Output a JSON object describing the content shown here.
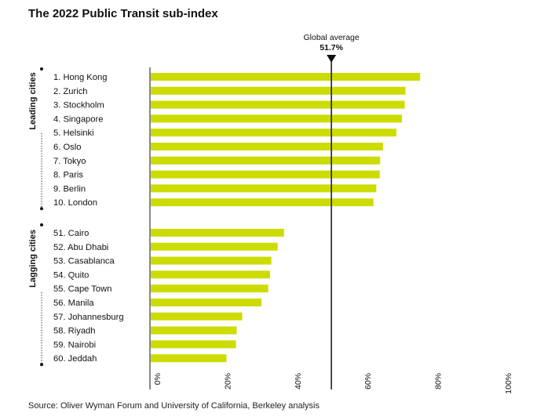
{
  "chart_data": {
    "type": "bar",
    "orientation": "horizontal",
    "title": "The 2022 Public Transit sub-index",
    "source": "Source: Oliver Wyman Forum and University of California, Berkeley analysis",
    "bar_color": "#cddc00",
    "xlim": [
      0,
      100
    ],
    "x_ticks": [
      "0%",
      "20%",
      "40%",
      "60%",
      "80%",
      "100%"
    ],
    "reference_line": {
      "label": "Global average",
      "value_label": "51.7%",
      "value": 51.7
    },
    "groups": [
      {
        "name": "Leading cities",
        "categories": [
          "1. Hong Kong",
          "2. Zurich",
          "3. Stockholm",
          "4. Singapore",
          "5. Helsinki",
          "6. Oslo",
          "7. Tokyo",
          "8. Paris",
          "9. Berlin",
          "10. London"
        ],
        "values": [
          77.0,
          72.8,
          72.6,
          71.8,
          70.2,
          66.4,
          65.6,
          65.5,
          64.5,
          63.7
        ]
      },
      {
        "name": "Lagging cities",
        "categories": [
          "51. Cairo",
          "52. Abu Dhabi",
          "53. Casablanca",
          "54. Quito",
          "55. Cape Town",
          "56. Manila",
          "57. Johannesburg",
          "58. Riyadh",
          "59. Nairobi",
          "60. Jeddah"
        ],
        "values": [
          38.2,
          36.4,
          34.6,
          34.2,
          33.7,
          31.8,
          26.3,
          24.7,
          24.5,
          21.8
        ]
      }
    ]
  }
}
